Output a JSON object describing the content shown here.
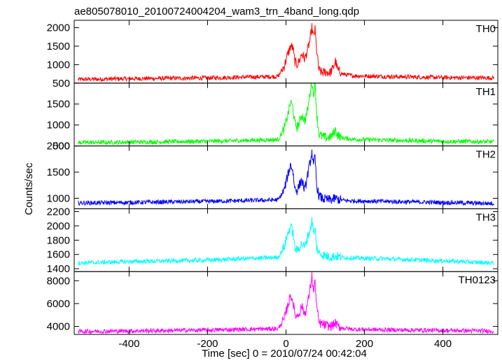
{
  "title": "ae805078010_20100724004204_wam3_trn_4band_long.qdp",
  "xlabel": "Time [sec] 0 = 2010/07/24 00:42:04",
  "ylabel": "Counts/sec",
  "chart_data": [
    {
      "type": "line",
      "name": "TH0",
      "color": "#ff0000",
      "xlim": [
        -540,
        540
      ],
      "ylim": [
        500,
        2200
      ],
      "yticks": [
        500,
        1000,
        1500,
        2000
      ],
      "xticks": [
        -400,
        -200,
        0,
        200,
        400
      ],
      "x": [
        -530,
        -400,
        -200,
        -20,
        -5,
        5,
        12,
        18,
        22,
        28,
        34,
        40,
        48,
        55,
        62,
        66,
        70,
        74,
        78,
        84,
        92,
        100,
        112,
        120,
        126,
        132,
        145,
        170,
        250,
        400,
        530
      ],
      "y": [
        600,
        620,
        640,
        680,
        950,
        1300,
        1500,
        1450,
        1100,
        1000,
        1100,
        1300,
        1150,
        1400,
        1700,
        2000,
        1750,
        1950,
        1400,
        850,
        780,
        800,
        780,
        900,
        1100,
        850,
        740,
        700,
        680,
        650,
        640
      ],
      "grid": false
    },
    {
      "type": "line",
      "name": "TH1",
      "color": "#00ff00",
      "xlim": [
        -540,
        540
      ],
      "ylim": [
        500,
        2000
      ],
      "yticks": [
        500,
        1000,
        1500
      ],
      "xticks": [
        -400,
        -200,
        0,
        200,
        400
      ],
      "x": [
        -530,
        -400,
        -200,
        -20,
        -5,
        5,
        12,
        18,
        22,
        28,
        34,
        40,
        48,
        55,
        62,
        66,
        70,
        74,
        78,
        84,
        92,
        100,
        112,
        120,
        126,
        132,
        145,
        170,
        250,
        400,
        530
      ],
      "y": [
        580,
        590,
        610,
        650,
        900,
        1250,
        1550,
        1400,
        1050,
        950,
        1050,
        1250,
        1100,
        1350,
        1800,
        2050,
        1700,
        2050,
        1300,
        780,
        720,
        700,
        700,
        780,
        880,
        760,
        690,
        660,
        640,
        610,
        600
      ],
      "grid": false
    },
    {
      "type": "line",
      "name": "TH2",
      "color": "#0000ff",
      "xlim": [
        -540,
        540
      ],
      "ylim": [
        800,
        2000
      ],
      "yticks": [
        1000,
        1500,
        2000
      ],
      "xticks": [
        -400,
        -200,
        0,
        200,
        400
      ],
      "x": [
        -530,
        -400,
        -200,
        -20,
        -5,
        5,
        12,
        18,
        22,
        28,
        34,
        40,
        48,
        55,
        62,
        66,
        70,
        74,
        78,
        84,
        92,
        100,
        112,
        120,
        126,
        132,
        145,
        170,
        250,
        400,
        530
      ],
      "y": [
        910,
        920,
        940,
        970,
        1150,
        1450,
        1650,
        1500,
        1200,
        1150,
        1250,
        1350,
        1150,
        1450,
        1700,
        1900,
        1600,
        1800,
        1250,
        1050,
        1000,
        980,
        970,
        980,
        1000,
        980,
        960,
        950,
        940,
        920,
        900
      ],
      "grid": false
    },
    {
      "type": "line",
      "name": "TH3",
      "color": "#00ffff",
      "xlim": [
        -540,
        540
      ],
      "ylim": [
        1360,
        2240
      ],
      "yticks": [
        1400,
        1600,
        1800,
        2000,
        2200
      ],
      "xticks": [
        -400,
        -200,
        0,
        200,
        400
      ],
      "x": [
        -530,
        -400,
        -200,
        -20,
        -5,
        5,
        12,
        18,
        22,
        28,
        34,
        40,
        48,
        55,
        62,
        66,
        70,
        74,
        78,
        84,
        92,
        100,
        112,
        120,
        126,
        132,
        145,
        170,
        250,
        400,
        530
      ],
      "y": [
        1480,
        1500,
        1520,
        1560,
        1700,
        1900,
        2000,
        1900,
        1700,
        1650,
        1700,
        1750,
        1700,
        1850,
        1950,
        2100,
        1900,
        1950,
        1700,
        1620,
        1600,
        1580,
        1570,
        1570,
        1580,
        1570,
        1560,
        1550,
        1540,
        1510,
        1480
      ],
      "grid": false
    },
    {
      "type": "line",
      "name": "TH0123",
      "color": "#ff00ff",
      "xlim": [
        -540,
        540
      ],
      "ylim": [
        3300,
        8800
      ],
      "yticks": [
        4000,
        6000,
        8000
      ],
      "xticks": [
        -400,
        -200,
        0,
        200,
        400
      ],
      "x": [
        -530,
        -400,
        -200,
        -20,
        -5,
        5,
        12,
        18,
        22,
        28,
        34,
        40,
        48,
        55,
        62,
        66,
        70,
        74,
        78,
        84,
        92,
        100,
        112,
        120,
        126,
        132,
        145,
        170,
        250,
        400,
        530
      ],
      "y": [
        3560,
        3600,
        3680,
        3800,
        4600,
        5900,
        6700,
        6200,
        5100,
        4900,
        5200,
        5800,
        5100,
        6000,
        7400,
        8500,
        7000,
        7900,
        5800,
        4300,
        4200,
        4100,
        4000,
        4100,
        4300,
        4000,
        3850,
        3750,
        3700,
        3650,
        3600
      ],
      "grid": false
    }
  ]
}
